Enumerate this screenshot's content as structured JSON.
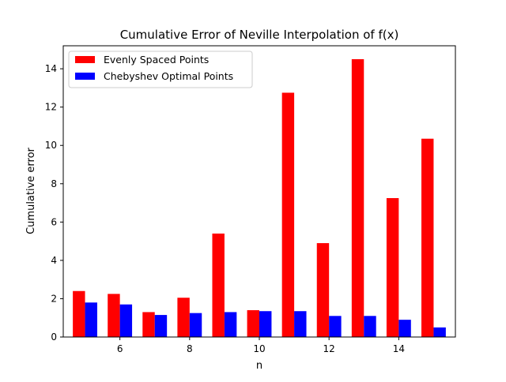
{
  "chart_data": {
    "type": "bar",
    "title": "Cumulative Error of Neville Interpolation of f(x)",
    "xlabel": "n",
    "ylabel": "Cumulative error",
    "x": [
      5,
      6,
      7,
      8,
      9,
      10,
      11,
      12,
      13,
      14,
      15
    ],
    "x_ticks": [
      6,
      8,
      10,
      12,
      14
    ],
    "y_ticks": [
      0,
      2,
      4,
      6,
      8,
      10,
      12,
      14
    ],
    "xlim": [
      4.375,
      15.625
    ],
    "ylim": [
      0,
      15.2
    ],
    "grid": false,
    "legend_position": "top-left",
    "series": [
      {
        "name": "Evenly Spaced Points",
        "color": "#ff0000",
        "values": [
          2.4,
          2.25,
          1.3,
          2.05,
          5.4,
          1.4,
          12.75,
          4.9,
          14.5,
          7.25,
          10.35
        ]
      },
      {
        "name": "Chebyshev Optimal Points",
        "color": "#0000ff",
        "values": [
          1.8,
          1.7,
          1.15,
          1.25,
          1.3,
          1.35,
          1.35,
          1.1,
          1.1,
          0.9,
          0.5
        ]
      }
    ]
  }
}
